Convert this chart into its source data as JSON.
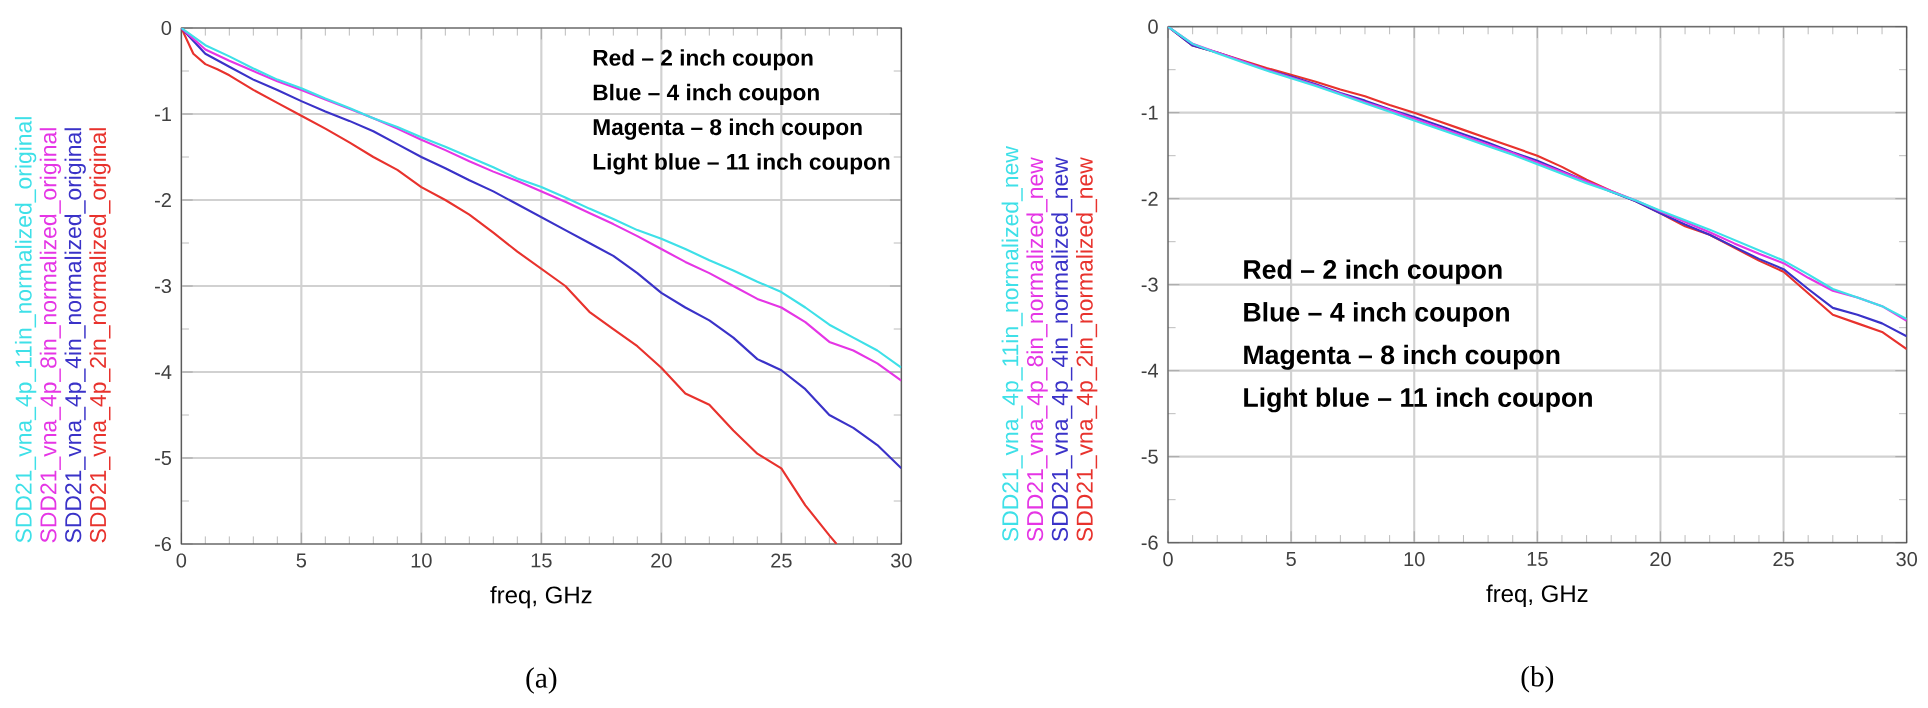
{
  "chart_data": [
    {
      "type": "line",
      "xlabel": "freq, GHz",
      "xlim": [
        0,
        30
      ],
      "xticks": [
        0,
        5,
        10,
        15,
        20,
        25,
        30
      ],
      "ylim": [
        -6,
        0
      ],
      "yticks": [
        -6,
        -5,
        -4,
        -3,
        -2,
        -1,
        0
      ],
      "grid": true,
      "x": [
        0,
        1,
        2,
        3,
        4,
        5,
        6,
        7,
        8,
        9,
        10,
        11,
        12,
        13,
        14,
        15,
        16,
        17,
        18,
        19,
        20,
        21,
        22,
        23,
        24,
        25,
        26,
        27,
        28,
        29,
        30
      ],
      "annotations": [
        "Red – 2 inch coupon",
        "Blue – 4 inch coupon",
        "Magenta – 8 inch coupon",
        "Light blue – 11 inch coupon",
        "(a)"
      ],
      "series": [
        {
          "name": "SDD21_vna_4p_2in_normalized_original",
          "color": "#e8322d",
          "x": [
            0,
            0.5,
            1,
            1.5,
            2,
            3,
            4,
            5,
            6,
            7,
            8,
            9,
            10,
            11,
            12,
            13,
            14,
            15,
            16,
            17,
            18,
            19,
            20,
            21,
            22,
            23,
            24,
            25,
            26,
            27,
            27.3
          ],
          "values": [
            0,
            -0.3,
            -0.42,
            -0.48,
            -0.55,
            -0.72,
            -0.87,
            -1.02,
            -1.17,
            -1.33,
            -1.5,
            -1.65,
            -1.85,
            -2.0,
            -2.17,
            -2.38,
            -2.6,
            -2.8,
            -3.0,
            -3.3,
            -3.5,
            -3.7,
            -3.95,
            -4.25,
            -4.38,
            -4.68,
            -4.95,
            -5.12,
            -5.55,
            -5.9,
            -6.0
          ]
        },
        {
          "name": "SDD21_vna_4p_4in_normalized_original",
          "color": "#3a32c8",
          "values": [
            0,
            -0.3,
            -0.45,
            -0.6,
            -0.72,
            -0.85,
            -0.97,
            -1.08,
            -1.2,
            -1.35,
            -1.5,
            -1.63,
            -1.77,
            -1.9,
            -2.05,
            -2.2,
            -2.35,
            -2.5,
            -2.65,
            -2.85,
            -3.08,
            -3.25,
            -3.4,
            -3.6,
            -3.85,
            -3.98,
            -4.2,
            -4.5,
            -4.65,
            -4.85,
            -5.12
          ]
        },
        {
          "name": "SDD21_vna_4p_8in_normalized_original",
          "color": "#e535e5",
          "values": [
            0,
            -0.25,
            -0.38,
            -0.5,
            -0.62,
            -0.72,
            -0.83,
            -0.94,
            -1.05,
            -1.17,
            -1.3,
            -1.42,
            -1.55,
            -1.67,
            -1.78,
            -1.9,
            -2.02,
            -2.15,
            -2.28,
            -2.42,
            -2.57,
            -2.72,
            -2.85,
            -3.0,
            -3.15,
            -3.25,
            -3.42,
            -3.65,
            -3.75,
            -3.9,
            -4.1
          ]
        },
        {
          "name": "SDD21_vna_4p_11in_normalized_original",
          "color": "#3ee0e8",
          "values": [
            0,
            -0.2,
            -0.33,
            -0.47,
            -0.6,
            -0.7,
            -0.82,
            -0.93,
            -1.05,
            -1.15,
            -1.27,
            -1.38,
            -1.5,
            -1.62,
            -1.75,
            -1.85,
            -1.97,
            -2.1,
            -2.22,
            -2.35,
            -2.45,
            -2.57,
            -2.7,
            -2.82,
            -2.95,
            -3.07,
            -3.25,
            -3.45,
            -3.6,
            -3.75,
            -3.95
          ]
        }
      ]
    },
    {
      "type": "line",
      "xlabel": "freq, GHz",
      "xlim": [
        0,
        30
      ],
      "xticks": [
        0,
        5,
        10,
        15,
        20,
        25,
        30
      ],
      "ylim": [
        -6,
        0
      ],
      "yticks": [
        -6,
        -5,
        -4,
        -3,
        -2,
        -1,
        0
      ],
      "grid": true,
      "x": [
        0,
        1,
        2,
        3,
        4,
        5,
        6,
        7,
        8,
        9,
        10,
        11,
        12,
        13,
        14,
        15,
        16,
        17,
        18,
        19,
        20,
        21,
        22,
        23,
        24,
        25,
        26,
        27,
        28,
        29,
        30
      ],
      "annotations": [
        "Red – 2 inch coupon",
        "Blue – 4 inch coupon",
        "Magenta – 8 inch coupon",
        "Light blue – 11 inch coupon",
        "(b)"
      ],
      "series": [
        {
          "name": "SDD21_vna_4p_2in_normalized_new",
          "color": "#e8322d",
          "values": [
            0,
            -0.22,
            -0.3,
            -0.39,
            -0.48,
            -0.56,
            -0.64,
            -0.73,
            -0.81,
            -0.91,
            -1.0,
            -1.1,
            -1.2,
            -1.3,
            -1.4,
            -1.5,
            -1.63,
            -1.78,
            -1.91,
            -2.03,
            -2.17,
            -2.32,
            -2.42,
            -2.57,
            -2.72,
            -2.85,
            -3.1,
            -3.35,
            -3.45,
            -3.55,
            -3.75
          ]
        },
        {
          "name": "SDD21_vna_4p_4in_normalized_new",
          "color": "#3a32c8",
          "values": [
            0,
            -0.22,
            -0.3,
            -0.4,
            -0.5,
            -0.58,
            -0.67,
            -0.77,
            -0.86,
            -0.96,
            -1.05,
            -1.15,
            -1.25,
            -1.35,
            -1.46,
            -1.56,
            -1.68,
            -1.8,
            -1.92,
            -2.03,
            -2.17,
            -2.3,
            -2.42,
            -2.56,
            -2.7,
            -2.82,
            -3.05,
            -3.27,
            -3.35,
            -3.45,
            -3.6
          ]
        },
        {
          "name": "SDD21_vna_4p_8in_normalized_new",
          "color": "#e535e5",
          "values": [
            0,
            -0.2,
            -0.3,
            -0.4,
            -0.5,
            -0.59,
            -0.68,
            -0.78,
            -0.88,
            -0.97,
            -1.07,
            -1.17,
            -1.27,
            -1.37,
            -1.47,
            -1.58,
            -1.69,
            -1.8,
            -1.91,
            -2.02,
            -2.15,
            -2.27,
            -2.39,
            -2.52,
            -2.64,
            -2.75,
            -2.92,
            -3.07,
            -3.15,
            -3.25,
            -3.42
          ]
        },
        {
          "name": "SDD21_vna_4p_11in_normalized_new",
          "color": "#3ee0e8",
          "values": [
            0,
            -0.2,
            -0.31,
            -0.41,
            -0.51,
            -0.6,
            -0.69,
            -0.79,
            -0.89,
            -0.99,
            -1.09,
            -1.19,
            -1.29,
            -1.39,
            -1.49,
            -1.6,
            -1.71,
            -1.82,
            -1.92,
            -2.02,
            -2.14,
            -2.25,
            -2.36,
            -2.48,
            -2.6,
            -2.72,
            -2.88,
            -3.05,
            -3.15,
            -3.25,
            -3.4
          ]
        }
      ]
    }
  ]
}
